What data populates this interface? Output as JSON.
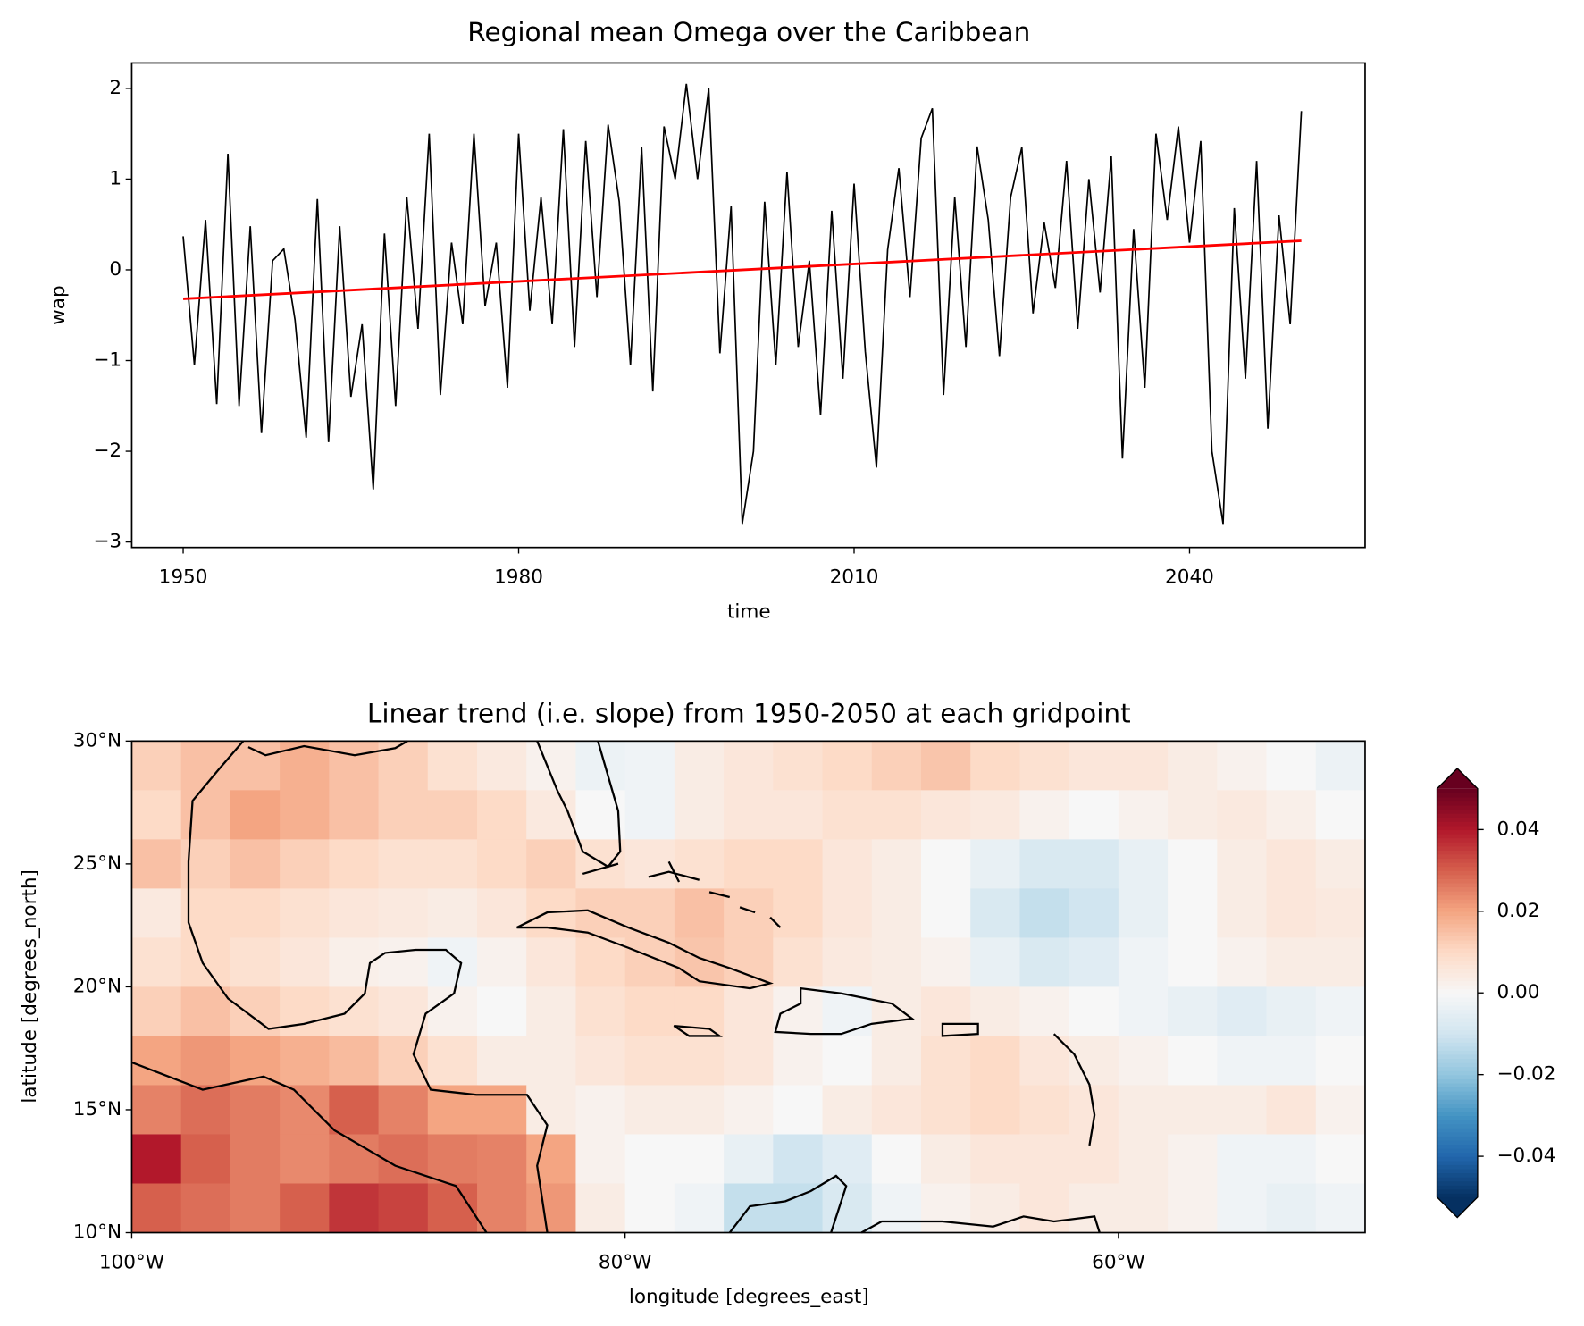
{
  "chart_data": [
    {
      "type": "line",
      "title": "Regional mean Omega over the Caribbean",
      "xlabel": "time",
      "ylabel": "wap",
      "xlim": [
        1945.4,
        2055.7
      ],
      "xticks": [
        1950,
        1980,
        2010,
        2040
      ],
      "ylim": [
        -3.06,
        2.28
      ],
      "yticks": [
        {
          "value": -3,
          "label": "−3"
        },
        {
          "value": -2,
          "label": "−2"
        },
        {
          "value": -1,
          "label": "−1"
        },
        0,
        1,
        2
      ],
      "series": [
        {
          "color": "#000000",
          "x": [
            1950,
            1951,
            1952,
            1953,
            1954,
            1955,
            1956,
            1957,
            1958,
            1959,
            1960,
            1961,
            1962,
            1963,
            1964,
            1965,
            1966,
            1967,
            1968,
            1969,
            1970,
            1971,
            1972,
            1973,
            1974,
            1975,
            1976,
            1977,
            1978,
            1979,
            1980,
            1981,
            1982,
            1983,
            1984,
            1985,
            1986,
            1987,
            1988,
            1989,
            1990,
            1991,
            1992,
            1993,
            1994,
            1995,
            1996,
            1997,
            1998,
            1999,
            2000,
            2001,
            2002,
            2003,
            2004,
            2005,
            2006,
            2007,
            2008,
            2009,
            2010,
            2011,
            2012,
            2013,
            2014,
            2015,
            2016,
            2017,
            2018,
            2019,
            2020,
            2021,
            2022,
            2023,
            2024,
            2025,
            2026,
            2027,
            2028,
            2029,
            2030,
            2031,
            2032,
            2033,
            2034,
            2035,
            2036,
            2037,
            2038,
            2039,
            2040,
            2041,
            2042,
            2043,
            2044,
            2045,
            2046,
            2047,
            2048,
            2049,
            2050
          ],
          "values": [
            0.37,
            -1.05,
            0.55,
            -1.48,
            1.28,
            -1.5,
            0.48,
            -1.8,
            0.1,
            0.23,
            -0.55,
            -1.85,
            0.78,
            -1.9,
            0.48,
            -1.4,
            -0.6,
            -2.42,
            0.4,
            -1.5,
            0.8,
            -0.65,
            1.5,
            -1.38,
            0.3,
            -0.6,
            1.5,
            -0.4,
            0.3,
            -1.3,
            1.5,
            -0.45,
            0.8,
            -0.6,
            1.55,
            -0.85,
            1.42,
            -0.3,
            1.6,
            0.75,
            -1.05,
            1.35,
            -1.34,
            1.58,
            1.0,
            2.05,
            1.0,
            2.0,
            -0.92,
            0.7,
            -2.8,
            -2.0,
            0.75,
            -1.05,
            1.08,
            -0.85,
            0.1,
            -1.6,
            0.65,
            -1.2,
            0.95,
            -0.9,
            -2.18,
            0.22,
            1.12,
            -0.3,
            1.45,
            1.78,
            -1.38,
            0.8,
            -0.85,
            1.36,
            0.55,
            -0.95,
            0.8,
            1.35,
            -0.48,
            0.52,
            -0.2,
            1.2,
            -0.65,
            1.0,
            -0.25,
            1.25,
            -2.08,
            0.45,
            -1.3,
            1.5,
            0.55,
            1.58,
            0.3,
            1.42,
            -2.0,
            -2.8,
            0.68,
            -1.2,
            1.2,
            -1.75,
            0.6,
            -0.6,
            1.75
          ]
        },
        {
          "color": "#ff0000",
          "x": [
            1950,
            2050
          ],
          "values": [
            -0.32,
            0.32
          ]
        }
      ]
    },
    {
      "type": "heatmap",
      "title": "Linear trend (i.e. slope) from 1950-2050 at each gridpoint",
      "xlabel": "longitude [degrees_east]",
      "ylabel": "latitude [degrees_north]",
      "xlim": [
        -100,
        -50
      ],
      "xticks": [
        {
          "value": -100,
          "label": "100°W"
        },
        {
          "value": -80,
          "label": "80°W"
        },
        {
          "value": -60,
          "label": "60°W"
        }
      ],
      "ylim": [
        10,
        30
      ],
      "yticks": [
        {
          "value": 10,
          "label": "10°N"
        },
        {
          "value": 15,
          "label": "15°N"
        },
        {
          "value": 20,
          "label": "20°N"
        },
        {
          "value": 25,
          "label": "25°N"
        },
        {
          "value": 30,
          "label": "30°N"
        }
      ],
      "x": [
        -99,
        -97,
        -95,
        -93,
        -91,
        -89,
        -87,
        -85,
        -83,
        -81,
        -79,
        -77,
        -75,
        -73,
        -71,
        -69,
        -67,
        -65,
        -63,
        -61,
        -59,
        -57,
        -55,
        -53,
        -51
      ],
      "y": [
        29,
        27,
        25,
        23,
        21,
        19,
        17,
        15,
        13,
        11
      ],
      "z": [
        [
          0.012,
          0.015,
          0.015,
          0.018,
          0.015,
          0.012,
          0.008,
          0.005,
          0.002,
          -0.003,
          -0.002,
          0.004,
          0.006,
          0.008,
          0.01,
          0.012,
          0.014,
          0.01,
          0.008,
          0.006,
          0.006,
          0.004,
          0.002,
          0.0,
          -0.003
        ],
        [
          0.01,
          0.015,
          0.02,
          0.018,
          0.015,
          0.012,
          0.012,
          0.01,
          0.005,
          0.0,
          -0.002,
          0.004,
          0.006,
          0.006,
          0.008,
          0.008,
          0.006,
          0.005,
          0.002,
          0.0,
          0.002,
          0.004,
          0.005,
          0.003,
          0.0
        ],
        [
          0.015,
          0.012,
          0.015,
          0.012,
          0.01,
          0.008,
          0.008,
          0.01,
          0.012,
          0.008,
          0.006,
          0.008,
          0.01,
          0.01,
          0.006,
          0.004,
          0.0,
          -0.004,
          -0.008,
          -0.008,
          -0.004,
          0.0,
          0.004,
          0.006,
          0.004
        ],
        [
          0.005,
          0.01,
          0.01,
          0.008,
          0.006,
          0.005,
          0.004,
          0.006,
          0.01,
          0.012,
          0.012,
          0.015,
          0.012,
          0.01,
          0.006,
          0.004,
          0.0,
          -0.008,
          -0.012,
          -0.01,
          -0.004,
          0.0,
          0.004,
          0.006,
          0.005
        ],
        [
          0.008,
          0.01,
          0.008,
          0.006,
          0.003,
          0.002,
          -0.002,
          0.002,
          0.006,
          0.01,
          0.012,
          0.014,
          0.012,
          0.008,
          0.005,
          0.004,
          0.002,
          -0.004,
          -0.008,
          -0.006,
          -0.002,
          0.0,
          0.002,
          0.004,
          0.004
        ],
        [
          0.012,
          0.015,
          0.012,
          0.01,
          0.008,
          0.006,
          0.002,
          0.0,
          0.004,
          0.008,
          0.01,
          0.01,
          0.006,
          0.002,
          -0.002,
          0.004,
          0.006,
          0.004,
          0.002,
          0.0,
          -0.002,
          -0.004,
          -0.006,
          -0.004,
          -0.002
        ],
        [
          0.02,
          0.022,
          0.02,
          0.018,
          0.016,
          0.012,
          0.008,
          0.004,
          0.004,
          0.006,
          0.008,
          0.008,
          0.006,
          0.002,
          0.0,
          0.004,
          0.008,
          0.01,
          0.006,
          0.004,
          0.002,
          0.0,
          -0.002,
          -0.002,
          0.0
        ],
        [
          0.025,
          0.028,
          0.026,
          0.024,
          0.03,
          0.025,
          0.02,
          0.02,
          0.004,
          0.002,
          0.004,
          0.004,
          0.002,
          0.0,
          0.004,
          0.006,
          0.008,
          0.01,
          0.008,
          0.006,
          0.004,
          0.004,
          0.004,
          0.006,
          0.002
        ],
        [
          0.04,
          0.03,
          0.026,
          0.024,
          0.026,
          0.028,
          0.026,
          0.025,
          0.02,
          0.002,
          0.0,
          0.0,
          -0.004,
          -0.01,
          -0.006,
          0.0,
          0.004,
          0.006,
          0.006,
          0.006,
          0.004,
          0.002,
          -0.002,
          -0.002,
          0.0
        ],
        [
          0.03,
          0.028,
          0.026,
          0.03,
          0.036,
          0.034,
          0.03,
          0.025,
          0.022,
          0.004,
          0.0,
          -0.002,
          -0.012,
          -0.012,
          -0.008,
          -0.002,
          0.002,
          0.004,
          0.006,
          0.004,
          0.004,
          0.002,
          -0.002,
          -0.004,
          -0.002
        ]
      ],
      "clim": [
        -0.05,
        0.05
      ],
      "colormap": [
        "#053061",
        "#2166ac",
        "#4393c3",
        "#92c5de",
        "#d1e5f0",
        "#f7f7f7",
        "#fddbc7",
        "#f4a582",
        "#d6604d",
        "#b2182b",
        "#67001f"
      ],
      "cticks": [
        {
          "value": -0.04,
          "label": "−0.04"
        },
        {
          "value": -0.02,
          "label": "−0.02"
        },
        {
          "value": 0,
          "label": "0.00"
        },
        0.02,
        0.04
      ]
    }
  ]
}
